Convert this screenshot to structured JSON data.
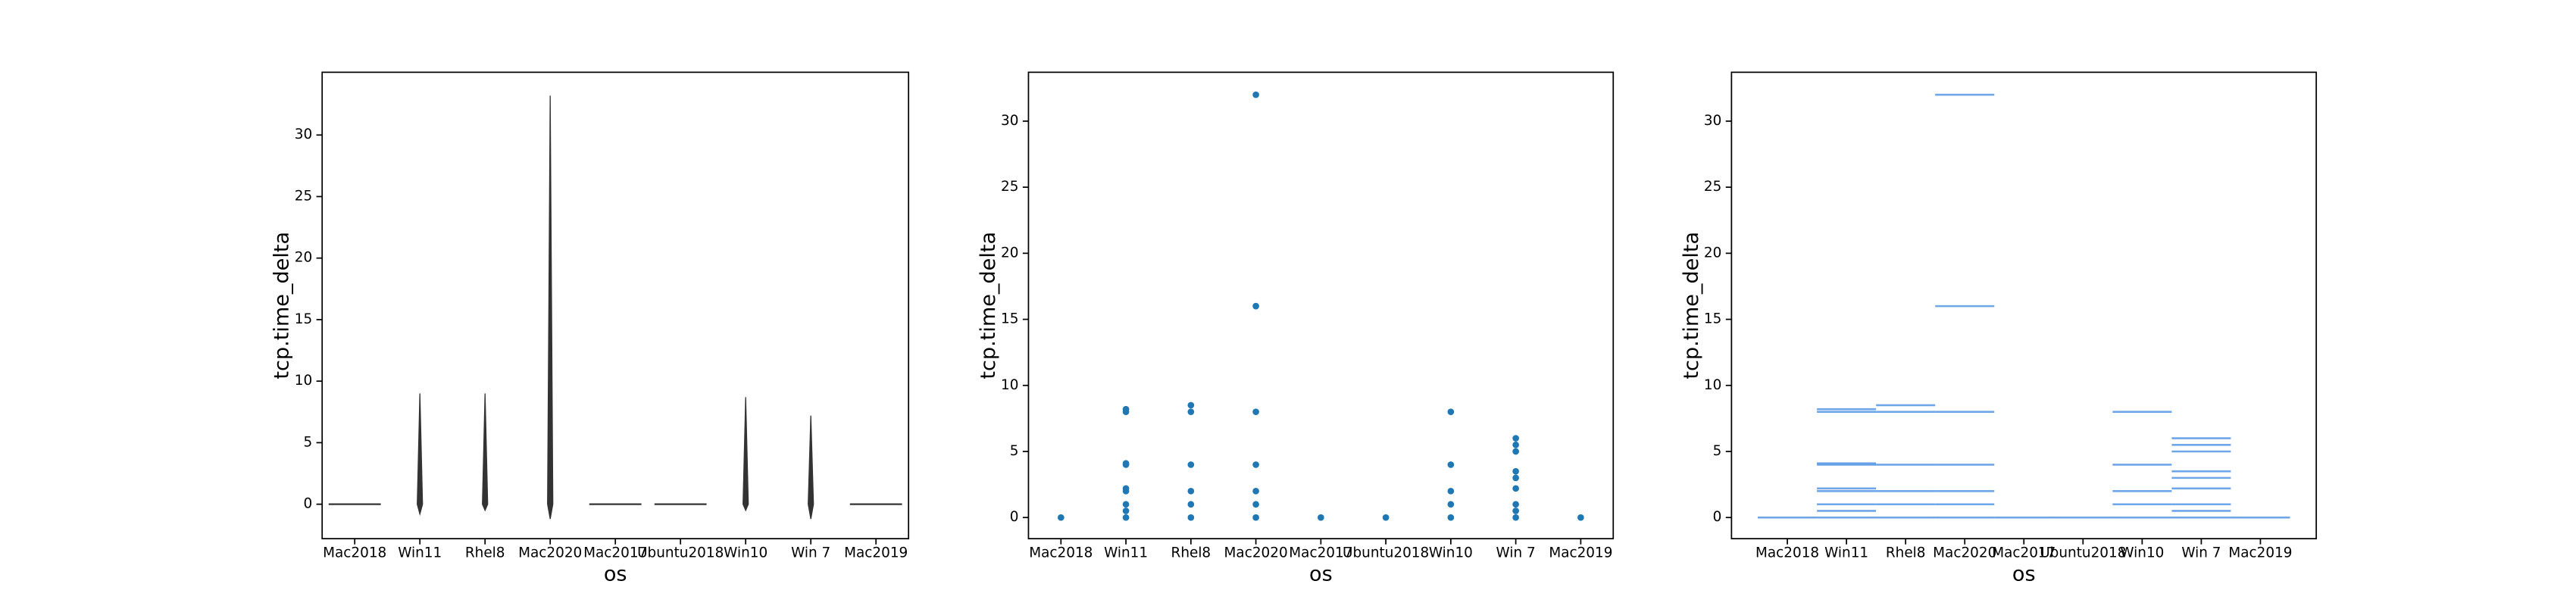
{
  "chart_data": [
    {
      "type": "violin",
      "x_label": "os",
      "y_label": "tcp.time_delta",
      "categories": [
        "Mac2018",
        "Win11",
        "Rhel8",
        "Mac2020",
        "Mac2017",
        "Ubuntu2018",
        "Win10",
        "Win 7",
        "Mac2019"
      ],
      "ranges": [
        [
          0,
          0
        ],
        [
          -0.8,
          9
        ],
        [
          -0.5,
          9
        ],
        [
          -1.2,
          33.2
        ],
        [
          0,
          0
        ],
        [
          0,
          0
        ],
        [
          -0.5,
          8.7
        ],
        [
          -1.2,
          7.2
        ],
        [
          0,
          0
        ]
      ],
      "color": "#333333",
      "ylim": [
        -2.8,
        35.1
      ],
      "yticks": [
        0,
        5,
        10,
        15,
        20,
        25,
        30
      ]
    },
    {
      "type": "strip",
      "x_label": "os",
      "y_label": "tcp.time_delta",
      "categories": [
        "Mac2018",
        "Win11",
        "Rhel8",
        "Mac2020",
        "Mac2017",
        "Ubuntu2018",
        "Win10",
        "Win 7",
        "Mac2019"
      ],
      "values": [
        [
          0
        ],
        [
          0,
          0.5,
          1,
          2,
          2.2,
          4,
          4.1,
          8,
          8.2
        ],
        [
          0,
          1,
          2,
          4,
          8,
          8.5
        ],
        [
          0,
          1,
          2,
          4,
          8,
          16,
          32
        ],
        [
          0
        ],
        [
          0
        ],
        [
          0,
          1,
          2,
          4,
          8
        ],
        [
          0,
          0.5,
          1,
          2.2,
          3,
          3.5,
          5,
          5.5,
          6
        ],
        [
          0
        ]
      ],
      "color": "#1f77b4",
      "ylim": [
        -1.6,
        33.7
      ],
      "yticks": [
        0,
        5,
        10,
        15,
        20,
        25,
        30
      ]
    },
    {
      "type": "hlines",
      "x_label": "os",
      "y_label": "tcp.time_delta",
      "categories": [
        "Mac2018",
        "Win11",
        "Rhel8",
        "Mac2020",
        "Mac2017",
        "Ubuntu2018",
        "Win10",
        "Win 7",
        "Mac2019"
      ],
      "values": [
        [
          0
        ],
        [
          0,
          0.5,
          1,
          2,
          2.2,
          4,
          4.1,
          8,
          8.2
        ],
        [
          0,
          1,
          2,
          4,
          8,
          8.5
        ],
        [
          0,
          1,
          2,
          4,
          8,
          16,
          32
        ],
        [
          0
        ],
        [
          0
        ],
        [
          0,
          1,
          2,
          4,
          8
        ],
        [
          0,
          0.5,
          1,
          2.2,
          3,
          3.5,
          5,
          5.5,
          6
        ],
        [
          0
        ]
      ],
      "color": "#4a90e2",
      "ylim": [
        -1.6,
        33.7
      ],
      "yticks": [
        0,
        5,
        10,
        15,
        20,
        25,
        30
      ]
    }
  ]
}
